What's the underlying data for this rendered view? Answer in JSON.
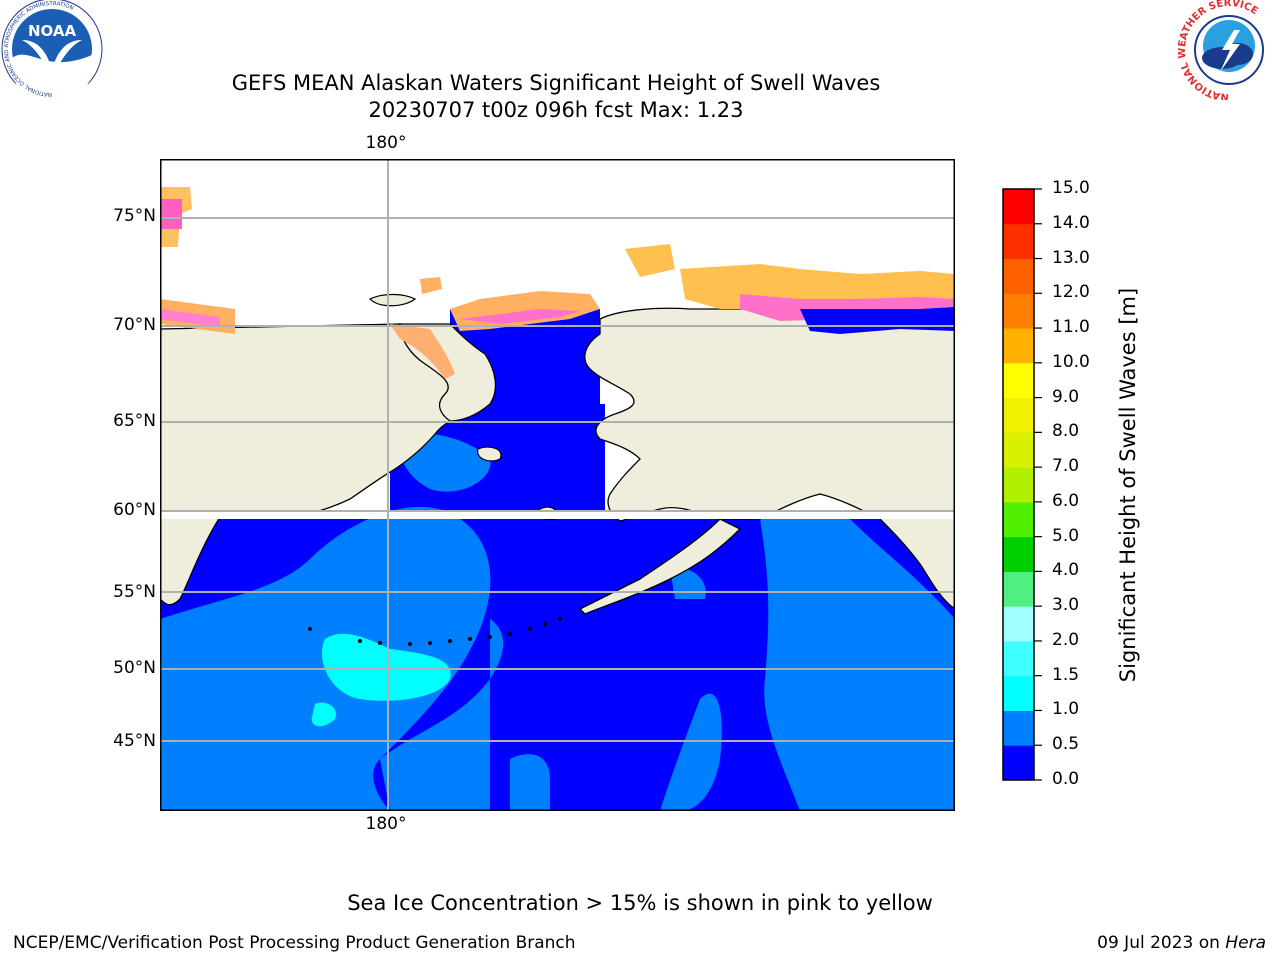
{
  "title": {
    "line1": "GEFS MEAN Alaskan Waters Significant Height of Swell Waves",
    "line2": "20230707 t00z 096h fcst   Max: 1.23"
  },
  "map": {
    "lat_labels": [
      "75°N",
      "70°N",
      "65°N",
      "60°N",
      "55°N",
      "50°N",
      "45°N"
    ],
    "lon_label_top": "180°",
    "lon_label_bottom": "180°",
    "colors": {
      "land": "#efeedc",
      "water_0_05": "#0000ff",
      "water_05_10": "#0080ff",
      "water_10_15": "#00ffff",
      "gridline": "#b0b0b0"
    }
  },
  "colorbar": {
    "title": "Significant Height of Swell Waves [m]",
    "ticks": [
      "15.0",
      "14.0",
      "13.0",
      "12.0",
      "11.0",
      "10.0",
      "9.0",
      "8.0",
      "7.0",
      "6.0",
      "5.0",
      "4.0",
      "3.0",
      "2.0",
      "1.5",
      "1.0",
      "0.5",
      "0.0"
    ],
    "segment_colors": [
      "#0000ff",
      "#0080ff",
      "#00ffff",
      "#40ffff",
      "#a0ffff",
      "#50f080",
      "#00d000",
      "#50f000",
      "#b0f000",
      "#d8f000",
      "#f0f000",
      "#ffff00",
      "#ffb000",
      "#ff8000",
      "#ff6000",
      "#ff3000",
      "#ff0000"
    ]
  },
  "sea_ice_note": "Sea Ice Concentration > 15% is shown in pink to yellow",
  "credits": {
    "left": "NCEP/EMC/Verification Post Processing Product Generation Branch",
    "right_date": "09 Jul 2023 on ",
    "right_machine": "Hera"
  },
  "logos": {
    "noaa_text": "NOAA",
    "noaa_ring_text": "NATIONAL OCEANIC AND ATMOSPHERIC ADMINISTRATION",
    "nws_ring_text": "NATIONAL WEATHER SERVICE"
  }
}
